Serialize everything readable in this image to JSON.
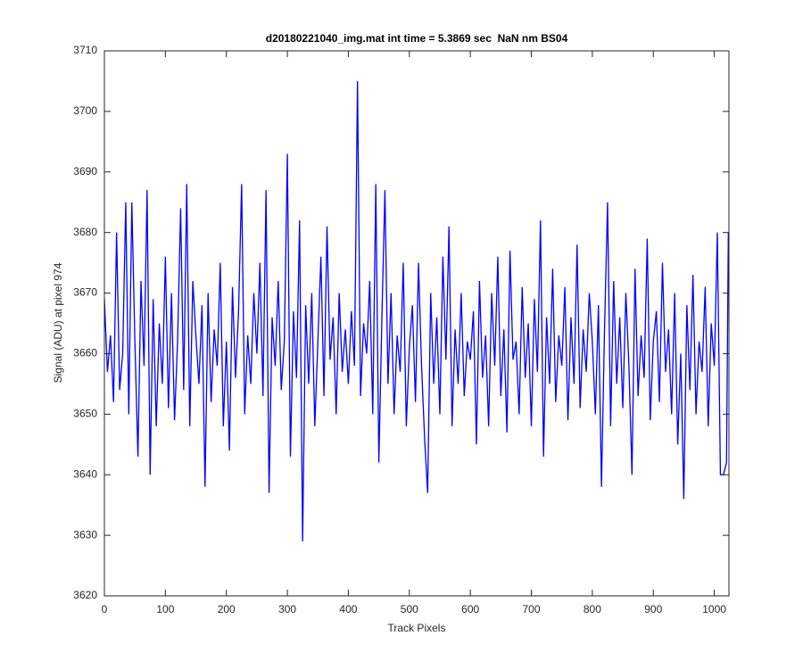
{
  "chart_data": {
    "type": "line",
    "title": "d20180221040_img.mat int time = 5.3869 sec  NaN nm BS04",
    "x_label": "Track Pixels",
    "y_label": "Signal (ADU) at pixel 974",
    "color": "#0000ff",
    "xlim": [
      0,
      1024
    ],
    "ylim": [
      3620,
      3710
    ],
    "xticks": [
      0,
      100,
      200,
      300,
      400,
      500,
      600,
      700,
      800,
      900,
      1000
    ],
    "yticks": [
      3620,
      3630,
      3640,
      3650,
      3660,
      3670,
      3680,
      3690,
      3700,
      3710
    ],
    "x": [
      0,
      5,
      10,
      15,
      20,
      25,
      30,
      35,
      40,
      45,
      50,
      55,
      60,
      65,
      70,
      75,
      80,
      85,
      90,
      95,
      100,
      105,
      110,
      115,
      120,
      125,
      130,
      135,
      140,
      145,
      150,
      155,
      160,
      165,
      170,
      175,
      180,
      185,
      190,
      195,
      200,
      205,
      210,
      215,
      220,
      225,
      230,
      235,
      240,
      245,
      250,
      255,
      260,
      265,
      270,
      275,
      280,
      285,
      290,
      295,
      300,
      305,
      310,
      315,
      320,
      325,
      330,
      335,
      340,
      345,
      350,
      355,
      360,
      365,
      370,
      375,
      380,
      385,
      390,
      395,
      400,
      405,
      410,
      415,
      420,
      425,
      430,
      435,
      440,
      445,
      450,
      455,
      460,
      465,
      470,
      475,
      480,
      485,
      490,
      495,
      500,
      505,
      510,
      515,
      520,
      525,
      530,
      535,
      540,
      545,
      550,
      555,
      560,
      565,
      570,
      575,
      580,
      585,
      590,
      595,
      600,
      605,
      610,
      615,
      620,
      625,
      630,
      635,
      640,
      645,
      650,
      655,
      660,
      665,
      670,
      675,
      680,
      685,
      690,
      695,
      700,
      705,
      710,
      715,
      720,
      725,
      730,
      735,
      740,
      745,
      750,
      755,
      760,
      765,
      770,
      775,
      780,
      785,
      790,
      795,
      800,
      805,
      810,
      815,
      820,
      825,
      830,
      835,
      840,
      845,
      850,
      855,
      860,
      865,
      870,
      875,
      880,
      885,
      890,
      895,
      900,
      905,
      910,
      915,
      920,
      925,
      930,
      935,
      940,
      945,
      950,
      955,
      960,
      965,
      970,
      975,
      980,
      985,
      990,
      995,
      1000,
      1005,
      1010,
      1015,
      1020,
      1023
    ],
    "values": [
      3669,
      3657,
      3663,
      3652,
      3680,
      3654,
      3660,
      3685,
      3650,
      3685,
      3662,
      3643,
      3672,
      3658,
      3687,
      3640,
      3669,
      3648,
      3665,
      3655,
      3676,
      3651,
      3670,
      3649,
      3662,
      3684,
      3654,
      3688,
      3648,
      3672,
      3663,
      3655,
      3668,
      3638,
      3670,
      3652,
      3664,
      3658,
      3675,
      3648,
      3662,
      3644,
      3671,
      3656,
      3667,
      3688,
      3650,
      3663,
      3655,
      3670,
      3660,
      3675,
      3653,
      3687,
      3637,
      3666,
      3658,
      3672,
      3654,
      3662,
      3693,
      3643,
      3667,
      3656,
      3682,
      3629,
      3668,
      3655,
      3670,
      3648,
      3662,
      3676,
      3653,
      3681,
      3659,
      3666,
      3650,
      3670,
      3657,
      3664,
      3655,
      3667,
      3658,
      3705,
      3653,
      3665,
      3660,
      3672,
      3650,
      3688,
      3642,
      3666,
      3687,
      3655,
      3670,
      3650,
      3663,
      3657,
      3675,
      3648,
      3661,
      3668,
      3652,
      3675,
      3658,
      3646,
      3637,
      3670,
      3655,
      3666,
      3650,
      3676,
      3659,
      3681,
      3648,
      3664,
      3655,
      3670,
      3653,
      3662,
      3659,
      3667,
      3645,
      3672,
      3656,
      3663,
      3648,
      3670,
      3658,
      3676,
      3653,
      3664,
      3647,
      3677,
      3659,
      3662,
      3650,
      3671,
      3656,
      3665,
      3648,
      3669,
      3657,
      3682,
      3643,
      3666,
      3655,
      3674,
      3652,
      3663,
      3658,
      3671,
      3649,
      3666,
      3655,
      3678,
      3651,
      3664,
      3657,
      3670,
      3662,
      3650,
      3668,
      3638,
      3664,
      3685,
      3648,
      3672,
      3655,
      3666,
      3651,
      3670,
      3658,
      3640,
      3674,
      3653,
      3663,
      3656,
      3679,
      3649,
      3662,
      3667,
      3652,
      3675,
      3657,
      3664,
      3650,
      3670,
      3645,
      3660,
      3636,
      3668,
      3654,
      3673,
      3650,
      3662,
      3657,
      3671,
      3648,
      3665,
      3658,
      3680,
      3640,
      3640,
      3642,
      3680
    ]
  }
}
